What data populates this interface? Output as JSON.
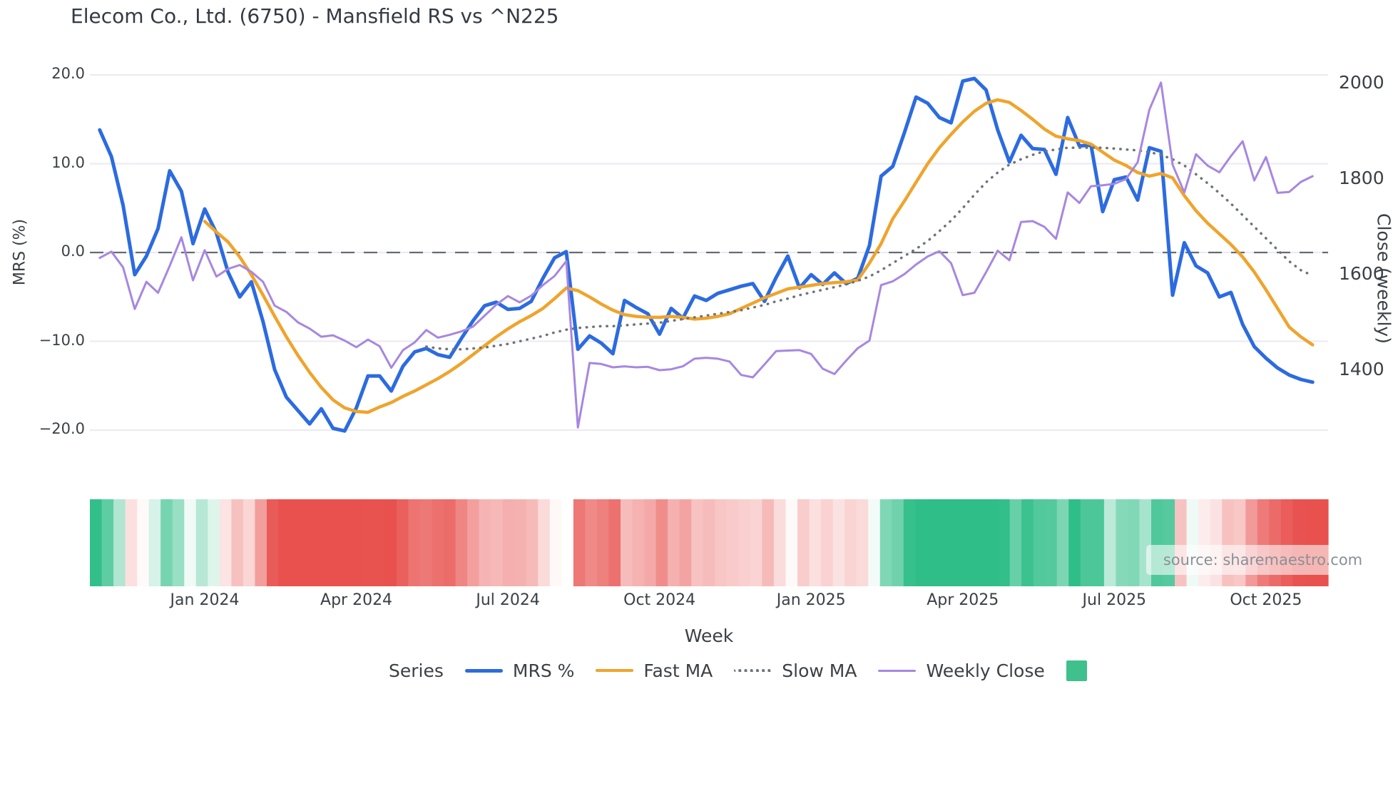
{
  "title": "Elecom Co., Ltd. (6750) - Mansfield RS vs ^N225",
  "watermark": {
    "text": "source: sharemaestro.com"
  },
  "legend": {
    "title": "Series",
    "items": [
      {
        "label": "MRS %",
        "swatch": "line",
        "color": "#2c6be0",
        "thickness": 5,
        "dash": "solid"
      },
      {
        "label": "Fast MA",
        "swatch": "line",
        "color": "#efa42c",
        "thickness": 4,
        "dash": "solid"
      },
      {
        "label": "Slow MA",
        "swatch": "line",
        "color": "#6e737b",
        "thickness": 4,
        "dash": "dotted"
      },
      {
        "label": "Weekly Close",
        "swatch": "line",
        "color": "#a787e0",
        "thickness": 3,
        "dash": "solid"
      },
      {
        "label": "",
        "swatch": "box",
        "color": "#3fc08d",
        "thickness": 0,
        "dash": "solid"
      }
    ]
  },
  "chart_data": {
    "type": "line",
    "title": "Elecom Co., Ltd. (6750) - Mansfield RS vs ^N225",
    "x_label": "Week",
    "x_axis": {
      "label": "Week",
      "ticks": [
        {
          "label": "Jan 2024",
          "week": 9
        },
        {
          "label": "Apr 2024",
          "week": 22
        },
        {
          "label": "Jul 2024",
          "week": 35
        },
        {
          "label": "Oct 2024",
          "week": 48
        },
        {
          "label": "Jan 2025",
          "week": 61
        },
        {
          "label": "Apr 2025",
          "week": 74
        },
        {
          "label": "Jul 2025",
          "week": 87
        },
        {
          "label": "Oct 2025",
          "week": 100
        }
      ]
    },
    "left_axis": {
      "label": "MRS (%)",
      "range": [
        -22,
        22
      ],
      "zero_line": "dashed",
      "grid": true,
      "ticks": [
        {
          "label": "20.0",
          "value": 20
        },
        {
          "label": "10.0",
          "value": 10
        },
        {
          "label": "0.0",
          "value": 0
        },
        {
          "label": "−10.0",
          "value": -10
        },
        {
          "label": "−20.0",
          "value": -20
        }
      ]
    },
    "right_axis": {
      "label": "Close (weekly)",
      "range": [
        1250,
        2030
      ],
      "ticks": [
        {
          "label": "2000",
          "value": 2000
        },
        {
          "label": "1800",
          "value": 1800
        },
        {
          "label": "1600",
          "value": 1600
        },
        {
          "label": "1400",
          "value": 1400
        }
      ]
    },
    "weeks_total": 105,
    "series": [
      {
        "name": "MRS %",
        "axis": "left",
        "color": "#2c6be0",
        "line_style": "solid",
        "start_week": 0,
        "values": [
          13.8,
          10.8,
          5.3,
          -2.5,
          -0.4,
          2.7,
          9.2,
          6.9,
          1.0,
          4.9,
          2.2,
          -2.2,
          -5.0,
          -3.3,
          -7.8,
          -13.2,
          -16.3,
          -17.8,
          -19.3,
          -17.6,
          -19.8,
          -20.1,
          -17.5,
          -13.9,
          -13.9,
          -15.6,
          -12.8,
          -11.2,
          -10.8,
          -11.5,
          -11.8,
          -9.7,
          -7.7,
          -6.0,
          -5.6,
          -6.4,
          -6.3,
          -5.5,
          -2.9,
          -0.6,
          0.1,
          -10.9,
          -9.4,
          -10.2,
          -11.4,
          -5.4,
          -6.2,
          -6.9,
          -9.2,
          -6.3,
          -7.4,
          -4.9,
          -5.4,
          -4.6,
          -4.2,
          -3.8,
          -3.5,
          -5.5,
          -2.8,
          -0.4,
          -4.0,
          -2.5,
          -3.6,
          -2.3,
          -3.5,
          -2.9,
          0.8,
          8.6,
          9.7,
          13.5,
          17.5,
          16.8,
          15.2,
          14.6,
          19.3,
          19.6,
          18.3,
          13.8,
          10.2,
          13.2,
          11.7,
          11.6,
          8.8,
          15.2,
          12.0,
          12.1,
          4.6,
          8.2,
          8.5,
          5.9,
          11.8,
          11.4,
          -4.8,
          1.1,
          -1.5,
          -2.3,
          -5.0,
          -4.5,
          -8.1,
          -10.6,
          -11.9,
          -13.0,
          -13.8,
          -14.3,
          -14.6
        ]
      },
      {
        "name": "Fast MA",
        "axis": "left",
        "color": "#efa42c",
        "line_style": "solid",
        "start_week": 9,
        "values": [
          3.5,
          2.3,
          1.2,
          -0.5,
          -2.5,
          -4.8,
          -7.2,
          -9.5,
          -11.6,
          -13.5,
          -15.2,
          -16.6,
          -17.5,
          -17.9,
          -18.0,
          -17.4,
          -16.9,
          -16.2,
          -15.6,
          -14.9,
          -14.2,
          -13.4,
          -12.5,
          -11.5,
          -10.5,
          -9.5,
          -8.6,
          -7.8,
          -7.1,
          -6.3,
          -5.2,
          -4.0,
          -4.3,
          -5.0,
          -5.8,
          -6.5,
          -7.0,
          -7.2,
          -7.3,
          -7.3,
          -7.2,
          -7.3,
          -7.5,
          -7.4,
          -7.2,
          -6.9,
          -6.3,
          -5.7,
          -5.1,
          -4.6,
          -4.1,
          -3.9,
          -3.7,
          -3.5,
          -3.4,
          -3.3,
          -3.1,
          -1.2,
          1.0,
          3.8,
          5.8,
          7.9,
          10.0,
          11.8,
          13.3,
          14.7,
          15.9,
          16.8,
          17.2,
          16.9,
          16.0,
          15.0,
          13.9,
          13.1,
          12.8,
          12.6,
          12.2,
          11.3,
          10.4,
          9.8,
          9.0,
          8.6,
          8.9,
          8.4,
          6.4,
          4.7,
          3.3,
          2.1,
          0.9,
          -0.5,
          -2.2,
          -4.2,
          -6.3,
          -8.4,
          -9.5,
          -10.4
        ]
      },
      {
        "name": "Slow MA",
        "axis": "left",
        "color": "#6e737b",
        "line_style": "dotted",
        "start_week": 28,
        "values": [
          -10.6,
          -10.8,
          -10.9,
          -10.9,
          -10.8,
          -10.7,
          -10.5,
          -10.3,
          -10.0,
          -9.7,
          -9.4,
          -9.0,
          -8.7,
          -8.5,
          -8.4,
          -8.3,
          -8.3,
          -8.2,
          -8.1,
          -8.0,
          -7.9,
          -7.7,
          -7.5,
          -7.3,
          -7.1,
          -6.9,
          -6.7,
          -6.5,
          -6.2,
          -5.9,
          -5.5,
          -5.2,
          -4.8,
          -4.5,
          -4.2,
          -3.9,
          -3.6,
          -3.2,
          -2.7,
          -2.0,
          -1.2,
          -0.4,
          0.4,
          1.3,
          2.4,
          3.6,
          5.0,
          6.5,
          7.9,
          9.0,
          9.9,
          10.5,
          11.0,
          11.4,
          11.6,
          11.8,
          11.8,
          11.8,
          11.8,
          11.7,
          11.6,
          11.5,
          11.3,
          11.0,
          10.5,
          9.8,
          8.8,
          7.8,
          6.7,
          5.5,
          4.2,
          2.9,
          1.6,
          0.3,
          -1.0,
          -2.0,
          -2.6
        ]
      },
      {
        "name": "Weekly Close",
        "axis": "right",
        "color": "#a787e0",
        "line_style": "solid",
        "start_week": 0,
        "values": [
          1635,
          1648,
          1615,
          1528,
          1585,
          1562,
          1618,
          1678,
          1588,
          1651,
          1596,
          1612,
          1620,
          1606,
          1585,
          1535,
          1522,
          1500,
          1487,
          1470,
          1473,
          1462,
          1448,
          1464,
          1450,
          1405,
          1442,
          1458,
          1484,
          1468,
          1474,
          1481,
          1491,
          1514,
          1537,
          1555,
          1542,
          1556,
          1578,
          1597,
          1628,
          1280,
          1415,
          1413,
          1406,
          1408,
          1406,
          1407,
          1400,
          1402,
          1408,
          1424,
          1426,
          1424,
          1418,
          1390,
          1385,
          1412,
          1440,
          1441,
          1442,
          1434,
          1403,
          1392,
          1420,
          1446,
          1462,
          1578,
          1586,
          1601,
          1621,
          1638,
          1649,
          1624,
          1557,
          1562,
          1605,
          1650,
          1630,
          1710,
          1712,
          1700,
          1675,
          1772,
          1750,
          1785,
          1787,
          1790,
          1800,
          1835,
          1945,
          2002,
          1830,
          1772,
          1852,
          1828,
          1814,
          1848,
          1879,
          1797,
          1846,
          1771,
          1773,
          1794,
          1806
        ]
      }
    ],
    "heatmap": {
      "derived_from": "MRS %",
      "positive_color": "#2fbe88",
      "negative_color": "#e8514e",
      "neutral_color": "#ffffff",
      "max_abs": 14
    }
  }
}
